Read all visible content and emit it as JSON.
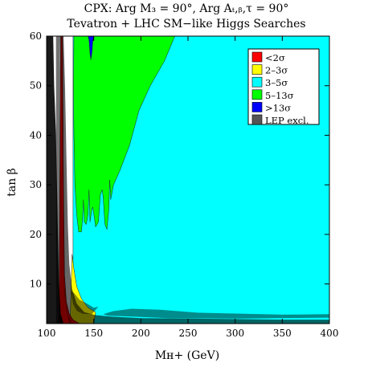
{
  "chart_data": {
    "type": "heatmap",
    "title_line1": "CPX:  Arg M₃ = 90°,  Arg Aₜ,ᵦ,τ = 90°",
    "title_line2": "Tevatron + LHC SM−like Higgs Searches",
    "xlabel": "Mʜ+ (GeV)",
    "ylabel": "tan β",
    "xlim": [
      100,
      400
    ],
    "ylim": [
      2,
      60
    ],
    "x_ticks": [
      100,
      150,
      200,
      250,
      300,
      350,
      400
    ],
    "y_ticks": [
      10,
      20,
      30,
      40,
      50,
      60
    ],
    "legend": {
      "placement": "top-right",
      "entries": [
        {
          "label": "<2σ",
          "color": "#ff0000"
        },
        {
          "label": "2–3σ",
          "color": "#ffff00"
        },
        {
          "label": "3–5σ",
          "color": "#00ffff"
        },
        {
          "label": "5–13σ",
          "color": "#00ff00"
        },
        {
          "label": ">13σ",
          "color": "#0000ff"
        },
        {
          "label": "LEP excl.",
          "color": "#555555"
        }
      ]
    },
    "regions": [
      {
        "class": "3–5σ",
        "color": "#00ffff",
        "opacity": 1,
        "points": [
          [
            128,
            2
          ],
          [
            128,
            60
          ],
          [
            400,
            60
          ],
          [
            400,
            2
          ]
        ]
      },
      {
        "class": "5–13σ",
        "color": "#00ff00",
        "opacity": 1,
        "points": [
          [
            129,
            60
          ],
          [
            128.5,
            50
          ],
          [
            129,
            40
          ],
          [
            130,
            30
          ],
          [
            132,
            24
          ],
          [
            134,
            20.5
          ],
          [
            137,
            20.5
          ],
          [
            138,
            23
          ],
          [
            139,
            27
          ],
          [
            140,
            22.5
          ],
          [
            142,
            22
          ],
          [
            144,
            24
          ],
          [
            145,
            29
          ],
          [
            146,
            22.5
          ],
          [
            148,
            25
          ],
          [
            149,
            25.5
          ],
          [
            151,
            23
          ],
          [
            152,
            21.5
          ],
          [
            155,
            22.5
          ],
          [
            157,
            28
          ],
          [
            159,
            29
          ],
          [
            160,
            27.5
          ],
          [
            162,
            22
          ],
          [
            164,
            21
          ],
          [
            166,
            25
          ],
          [
            167,
            31
          ],
          [
            168,
            27
          ],
          [
            170,
            29
          ],
          [
            171,
            30
          ],
          [
            178,
            33
          ],
          [
            188,
            38
          ],
          [
            198,
            45
          ],
          [
            210,
            50
          ],
          [
            225,
            55
          ],
          [
            236,
            60
          ]
        ]
      },
      {
        "class": ">13σ",
        "color": "#0000ff",
        "opacity": 1,
        "points": [
          [
            144,
            60
          ],
          [
            145,
            59.2
          ],
          [
            146,
            56.5
          ],
          [
            147,
            55.2
          ],
          [
            148,
            56.5
          ],
          [
            149,
            59
          ],
          [
            150,
            60
          ]
        ]
      },
      {
        "class": "2–3σ",
        "color": "#ffff00",
        "opacity": 1,
        "points": [
          [
            127,
            16
          ],
          [
            129,
            13
          ],
          [
            132,
            9.5
          ],
          [
            137,
            7
          ],
          [
            144,
            5.2
          ],
          [
            152,
            4.3
          ],
          [
            150,
            2
          ],
          [
            125,
            2
          ]
        ]
      },
      {
        "class": "<2σ",
        "color": "#ff0000",
        "opacity": 1,
        "points": [
          [
            117,
            60
          ],
          [
            118,
            30
          ],
          [
            119,
            12
          ],
          [
            121,
            6.5
          ],
          [
            124,
            4
          ],
          [
            128,
            2.8
          ],
          [
            135,
            2
          ],
          [
            113,
            2
          ],
          [
            114,
            30
          ],
          [
            115,
            60
          ]
        ]
      },
      {
        "class": "LEP excl.",
        "color": "#000000",
        "opacity": 0.6,
        "points": [
          [
            118,
            60
          ],
          [
            119.5,
            50
          ],
          [
            121,
            36
          ],
          [
            122.5,
            22
          ],
          [
            124,
            14
          ],
          [
            127,
            9
          ],
          [
            132,
            6
          ],
          [
            140,
            4.3
          ],
          [
            152,
            3.7
          ],
          [
            170,
            3.4
          ],
          [
            200,
            3.1
          ],
          [
            250,
            3.0
          ],
          [
            300,
            2.9
          ],
          [
            350,
            2.8
          ],
          [
            400,
            2.8
          ],
          [
            400,
            2
          ],
          [
            125,
            2
          ],
          [
            123,
            3
          ],
          [
            121,
            5
          ],
          [
            119,
            8
          ],
          [
            118,
            12
          ],
          [
            117,
            20
          ],
          [
            116,
            35
          ],
          [
            115,
            50
          ],
          [
            114,
            60
          ]
        ]
      },
      {
        "class": "LEP excl.",
        "color": "#000000",
        "opacity": 0.45,
        "points": [
          [
            126,
            8.5
          ],
          [
            128,
            6
          ],
          [
            132,
            4.6
          ],
          [
            138,
            4
          ],
          [
            148,
            3.9
          ],
          [
            155,
            5.4
          ],
          [
            150,
            5.2
          ],
          [
            143,
            6
          ],
          [
            135,
            6.8
          ],
          [
            129,
            8.2
          ]
        ]
      },
      {
        "class": "LEP excl.",
        "color": "#000000",
        "opacity": 0.45,
        "points": [
          [
            160,
            3.9
          ],
          [
            170,
            4.5
          ],
          [
            190,
            5.0
          ],
          [
            220,
            4.8
          ],
          [
            260,
            4.2
          ],
          [
            310,
            4.0
          ],
          [
            350,
            3.8
          ],
          [
            400,
            3.9
          ],
          [
            400,
            3.2
          ],
          [
            300,
            3.0
          ],
          [
            230,
            3.1
          ],
          [
            180,
            3.5
          ],
          [
            165,
            3.6
          ]
        ]
      },
      {
        "class": "LEP excl.",
        "color": "#000000",
        "opacity": 0.55,
        "points": [
          [
            114,
            60
          ],
          [
            115.5,
            40
          ],
          [
            117,
            20
          ],
          [
            118.5,
            10
          ],
          [
            120.5,
            6
          ],
          [
            123,
            3.5
          ],
          [
            126,
            2
          ],
          [
            110,
            2
          ],
          [
            110,
            60
          ]
        ]
      },
      {
        "class": "LEP excl.",
        "color": "#000000",
        "opacity": 0.9,
        "points": [
          [
            100,
            2
          ],
          [
            100,
            60
          ],
          [
            107,
            60
          ],
          [
            108,
            50
          ],
          [
            110,
            40
          ],
          [
            111,
            30
          ],
          [
            112,
            20
          ],
          [
            113,
            10
          ],
          [
            115,
            4
          ],
          [
            118,
            2
          ]
        ]
      }
    ]
  }
}
